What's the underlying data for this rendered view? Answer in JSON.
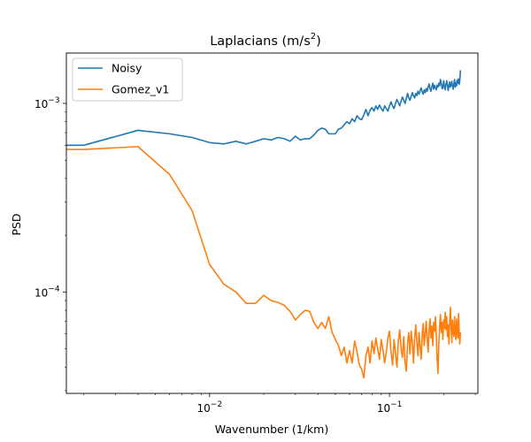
{
  "chart_data": {
    "type": "line",
    "title": "Laplacians (m/s²)",
    "title_base": "Laplacians (m/s",
    "title_sup": "2",
    "title_end": ")",
    "xlabel": "Wavenumber (1/km)",
    "ylabel": "PSD",
    "xscale": "log",
    "yscale": "log",
    "xlim": [
      0.0016,
      0.31
    ],
    "ylim": [
      2.9e-05,
      0.00185
    ],
    "grid": false,
    "legend_position": "upper left",
    "x_ticks": [
      {
        "value": 0.01,
        "base": "10",
        "exp": "−2"
      },
      {
        "value": 0.1,
        "base": "10",
        "exp": "−1"
      }
    ],
    "y_ticks": [
      {
        "value": 0.0001,
        "base": "10",
        "exp": "−4"
      },
      {
        "value": 0.001,
        "base": "10",
        "exp": "−3"
      }
    ],
    "series": [
      {
        "name": "Noisy",
        "color": "#1f77b4",
        "points": [
          [
            0.0016,
            0.0006
          ],
          [
            0.002,
            0.0006
          ],
          [
            0.004,
            0.00072
          ],
          [
            0.006,
            0.00069
          ],
          [
            0.008,
            0.00066
          ],
          [
            0.01,
            0.00062
          ],
          [
            0.012,
            0.00061
          ],
          [
            0.014,
            0.00063
          ],
          [
            0.016,
            0.00061
          ],
          [
            0.018,
            0.00063
          ],
          [
            0.02,
            0.00065
          ],
          [
            0.022,
            0.00064
          ],
          [
            0.024,
            0.00066
          ],
          [
            0.026,
            0.00065
          ],
          [
            0.028,
            0.00063
          ],
          [
            0.03,
            0.00067
          ],
          [
            0.032,
            0.00064
          ],
          [
            0.034,
            0.00065
          ],
          [
            0.036,
            0.00065
          ],
          [
            0.038,
            0.00068
          ],
          [
            0.04,
            0.00072
          ],
          [
            0.042,
            0.00074
          ],
          [
            0.044,
            0.00073
          ],
          [
            0.046,
            0.00069
          ],
          [
            0.048,
            0.00069
          ],
          [
            0.05,
            0.00069
          ],
          [
            0.052,
            0.00073
          ],
          [
            0.054,
            0.00074
          ],
          [
            0.056,
            0.00077
          ],
          [
            0.058,
            0.0008
          ],
          [
            0.06,
            0.00078
          ],
          [
            0.062,
            0.00083
          ],
          [
            0.064,
            0.0008
          ],
          [
            0.066,
            0.00086
          ],
          [
            0.068,
            0.00083
          ],
          [
            0.07,
            0.00082
          ],
          [
            0.072,
            0.00087
          ],
          [
            0.074,
            0.00093
          ],
          [
            0.076,
            0.00086
          ],
          [
            0.078,
            0.00092
          ],
          [
            0.08,
            0.00095
          ],
          [
            0.082,
            0.00091
          ],
          [
            0.084,
            0.00097
          ],
          [
            0.086,
            0.00093
          ],
          [
            0.088,
            0.00098
          ],
          [
            0.09,
            0.00094
          ],
          [
            0.092,
            0.00091
          ],
          [
            0.094,
            0.00097
          ],
          [
            0.096,
            0.00094
          ],
          [
            0.098,
            0.00091
          ],
          [
            0.1,
            0.00097
          ],
          [
            0.102,
            0.00102
          ],
          [
            0.104,
            0.00097
          ],
          [
            0.106,
            0.00094
          ],
          [
            0.108,
            0.001
          ],
          [
            0.11,
            0.00105
          ],
          [
            0.112,
            0.00101
          ],
          [
            0.114,
            0.00097
          ],
          [
            0.116,
            0.00103
          ],
          [
            0.118,
            0.00108
          ],
          [
            0.12,
            0.00104
          ],
          [
            0.122,
            0.001
          ],
          [
            0.124,
            0.00106
          ],
          [
            0.126,
            0.00113
          ],
          [
            0.128,
            0.00107
          ],
          [
            0.13,
            0.00104
          ],
          [
            0.132,
            0.00109
          ],
          [
            0.134,
            0.00114
          ],
          [
            0.136,
            0.0011
          ],
          [
            0.138,
            0.00107
          ],
          [
            0.14,
            0.00113
          ],
          [
            0.142,
            0.0011
          ],
          [
            0.144,
            0.00116
          ],
          [
            0.146,
            0.00112
          ],
          [
            0.148,
            0.00117
          ],
          [
            0.15,
            0.00121
          ],
          [
            0.152,
            0.00115
          ],
          [
            0.154,
            0.00112
          ],
          [
            0.156,
            0.00118
          ],
          [
            0.158,
            0.00114
          ],
          [
            0.16,
            0.0012
          ],
          [
            0.162,
            0.00116
          ],
          [
            0.164,
            0.00122
          ],
          [
            0.166,
            0.00127
          ],
          [
            0.168,
            0.0012
          ],
          [
            0.17,
            0.00116
          ],
          [
            0.172,
            0.00123
          ],
          [
            0.174,
            0.00128
          ],
          [
            0.176,
            0.00119
          ],
          [
            0.178,
            0.00125
          ],
          [
            0.18,
            0.00121
          ],
          [
            0.182,
            0.00118
          ],
          [
            0.184,
            0.00125
          ],
          [
            0.186,
            0.00122
          ],
          [
            0.188,
            0.00128
          ],
          [
            0.19,
            0.00124
          ],
          [
            0.192,
            0.00134
          ],
          [
            0.194,
            0.00128
          ],
          [
            0.196,
            0.0012
          ],
          [
            0.198,
            0.0012
          ],
          [
            0.2,
            0.00132
          ],
          [
            0.202,
            0.00124
          ],
          [
            0.204,
            0.00118
          ],
          [
            0.206,
            0.00126
          ],
          [
            0.208,
            0.00132
          ],
          [
            0.21,
            0.00125
          ],
          [
            0.212,
            0.00117
          ],
          [
            0.214,
            0.00124
          ],
          [
            0.216,
            0.0013
          ],
          [
            0.218,
            0.00122
          ],
          [
            0.22,
            0.00126
          ],
          [
            0.222,
            0.00131
          ],
          [
            0.224,
            0.00123
          ],
          [
            0.226,
            0.00119
          ],
          [
            0.228,
            0.00127
          ],
          [
            0.23,
            0.00134
          ],
          [
            0.232,
            0.00122
          ],
          [
            0.234,
            0.00129
          ],
          [
            0.236,
            0.00124
          ],
          [
            0.238,
            0.00133
          ],
          [
            0.24,
            0.00128
          ],
          [
            0.242,
            0.00135
          ],
          [
            0.244,
            0.00126
          ],
          [
            0.246,
            0.00133
          ],
          [
            0.248,
            0.0015
          ]
        ]
      },
      {
        "name": "Gomez_v1",
        "color": "#ff7f0e",
        "points": [
          [
            0.0016,
            0.00057
          ],
          [
            0.002,
            0.00057
          ],
          [
            0.004,
            0.00059
          ],
          [
            0.006,
            0.00042
          ],
          [
            0.008,
            0.00027
          ],
          [
            0.01,
            0.00014
          ],
          [
            0.012,
            0.00011
          ],
          [
            0.014,
            0.0001
          ],
          [
            0.016,
            8.7e-05
          ],
          [
            0.018,
            8.7e-05
          ],
          [
            0.02,
            9.6e-05
          ],
          [
            0.022,
            9e-05
          ],
          [
            0.024,
            8.8e-05
          ],
          [
            0.026,
            8.5e-05
          ],
          [
            0.028,
            7.9e-05
          ],
          [
            0.03,
            7.1e-05
          ],
          [
            0.032,
            7.6e-05
          ],
          [
            0.034,
            8e-05
          ],
          [
            0.036,
            7.9e-05
          ],
          [
            0.038,
            6.9e-05
          ],
          [
            0.04,
            6.4e-05
          ],
          [
            0.042,
            6.9e-05
          ],
          [
            0.044,
            6.4e-05
          ],
          [
            0.046,
            7.4e-05
          ],
          [
            0.048,
            6.1e-05
          ],
          [
            0.05,
            5.6e-05
          ],
          [
            0.052,
            5.2e-05
          ],
          [
            0.054,
            4.6e-05
          ],
          [
            0.056,
            5.1e-05
          ],
          [
            0.058,
            4.2e-05
          ],
          [
            0.06,
            4.9e-05
          ],
          [
            0.062,
            4.2e-05
          ],
          [
            0.064,
            5.5e-05
          ],
          [
            0.066,
            4.8e-05
          ],
          [
            0.068,
            4.1e-05
          ],
          [
            0.07,
            3.9e-05
          ],
          [
            0.072,
            3.5e-05
          ],
          [
            0.074,
            4.6e-05
          ],
          [
            0.076,
            5.1e-05
          ],
          [
            0.078,
            4.2e-05
          ],
          [
            0.08,
            5.5e-05
          ],
          [
            0.082,
            4.7e-05
          ],
          [
            0.084,
            5.7e-05
          ],
          [
            0.086,
            5e-05
          ],
          [
            0.088,
            4.4e-05
          ],
          [
            0.09,
            5.6e-05
          ],
          [
            0.092,
            4.9e-05
          ],
          [
            0.094,
            4.2e-05
          ],
          [
            0.096,
            4.8e-05
          ],
          [
            0.098,
            5.7e-05
          ],
          [
            0.1,
            6.2e-05
          ],
          [
            0.102,
            4.8e-05
          ],
          [
            0.104,
            4.1e-05
          ],
          [
            0.106,
            5.6e-05
          ],
          [
            0.108,
            4.7e-05
          ],
          [
            0.11,
            4e-05
          ],
          [
            0.112,
            5.5e-05
          ],
          [
            0.114,
            6.3e-05
          ],
          [
            0.116,
            5e-05
          ],
          [
            0.118,
            4.5e-05
          ],
          [
            0.12,
            5.8e-05
          ],
          [
            0.122,
            4.3e-05
          ],
          [
            0.124,
            3.8e-05
          ],
          [
            0.126,
            5.3e-05
          ],
          [
            0.128,
            6.1e-05
          ],
          [
            0.13,
            4.7e-05
          ],
          [
            0.132,
            6.2e-05
          ],
          [
            0.134,
            5.4e-05
          ],
          [
            0.136,
            4.2e-05
          ],
          [
            0.138,
            5.7e-05
          ],
          [
            0.14,
            6.7e-05
          ],
          [
            0.142,
            5.4e-05
          ],
          [
            0.144,
            4.6e-05
          ],
          [
            0.146,
            6.1e-05
          ],
          [
            0.148,
            5.1e-05
          ],
          [
            0.15,
            4.4e-05
          ],
          [
            0.152,
            5.9e-05
          ],
          [
            0.154,
            6.8e-05
          ],
          [
            0.156,
            5.2e-05
          ],
          [
            0.158,
            6e-05
          ],
          [
            0.16,
            7e-05
          ],
          [
            0.162,
            5.6e-05
          ],
          [
            0.164,
            4.8e-05
          ],
          [
            0.166,
            6.3e-05
          ],
          [
            0.168,
            7.2e-05
          ],
          [
            0.17,
            5.7e-05
          ],
          [
            0.172,
            6.6e-05
          ],
          [
            0.174,
            5.2e-05
          ],
          [
            0.176,
            6.9e-05
          ],
          [
            0.178,
            6.2e-05
          ],
          [
            0.18,
            7.4e-05
          ],
          [
            0.182,
            5.9e-05
          ],
          [
            0.184,
            4.4e-05
          ],
          [
            0.186,
            3.7e-05
          ],
          [
            0.188,
            5.3e-05
          ],
          [
            0.19,
            6.7e-05
          ],
          [
            0.192,
            7.6e-05
          ],
          [
            0.194,
            6.1e-05
          ],
          [
            0.196,
            6.9e-05
          ],
          [
            0.198,
            5.6e-05
          ],
          [
            0.2,
            7.1e-05
          ],
          [
            0.202,
            6.4e-05
          ],
          [
            0.204,
            7.8e-05
          ],
          [
            0.206,
            6.3e-05
          ],
          [
            0.208,
            7.4e-05
          ],
          [
            0.21,
            5.8e-05
          ],
          [
            0.212,
            6.7e-05
          ],
          [
            0.214,
            5.3e-05
          ],
          [
            0.216,
            6.9e-05
          ],
          [
            0.218,
            8.3e-05
          ],
          [
            0.22,
            6.6e-05
          ],
          [
            0.222,
            5.4e-05
          ],
          [
            0.224,
            7.1e-05
          ],
          [
            0.226,
            6.2e-05
          ],
          [
            0.228,
            5.8e-05
          ],
          [
            0.23,
            7.4e-05
          ],
          [
            0.232,
            6.1e-05
          ],
          [
            0.234,
            5.6e-05
          ],
          [
            0.236,
            7.2e-05
          ],
          [
            0.238,
            6.3e-05
          ],
          [
            0.24,
            5.7e-05
          ],
          [
            0.242,
            7.7e-05
          ],
          [
            0.244,
            6.1e-05
          ],
          [
            0.246,
            5.3e-05
          ],
          [
            0.248,
            6.1e-05
          ]
        ]
      }
    ]
  }
}
